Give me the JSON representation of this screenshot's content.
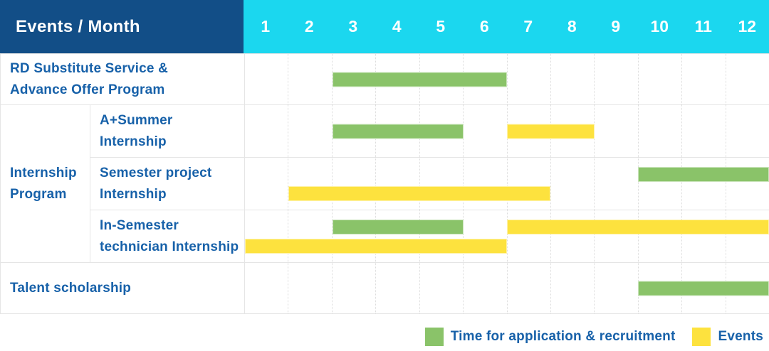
{
  "header": {
    "corner_label": "Events / Month",
    "months": [
      "1",
      "2",
      "3",
      "4",
      "5",
      "6",
      "7",
      "8",
      "9",
      "10",
      "11",
      "12"
    ]
  },
  "rows": {
    "row1_label": "RD Substitute Service &\nAdvance Offer Program",
    "group_label": "Internship\nProgram",
    "row2_label": "A+Summer\nInternship",
    "row3_label": "Semester project\nInternship",
    "row4_label": "In-Semester\ntechnician Internship",
    "row5_label": "Talent scholarship"
  },
  "legend": {
    "recruitment_label": "Time for application & recruitment",
    "events_label": "Events"
  },
  "colors": {
    "header_bg": "#124E87",
    "months_bg": "#1BD7EF",
    "recruitment": "#8AC369",
    "events": "#FDE23E",
    "label_text": "#1761A9"
  },
  "chart_data": {
    "type": "bar",
    "subtype": "gantt",
    "title": "Events / Month",
    "x_axis": {
      "label": "Month",
      "ticks": [
        1,
        2,
        3,
        4,
        5,
        6,
        7,
        8,
        9,
        10,
        11,
        12
      ],
      "range": [
        1,
        12
      ]
    },
    "grid": true,
    "legend_position": "bottom-right",
    "legend": [
      {
        "series": "recruitment",
        "label": "Time for application & recruitment",
        "color": "#8AC369"
      },
      {
        "series": "events",
        "label": "Events",
        "color": "#FDE23E"
      }
    ],
    "tasks": [
      {
        "group": "",
        "name": "RD Substitute Service & Advance Offer Program",
        "bars": [
          {
            "series": "recruitment",
            "start_month": 3,
            "end_month": 6,
            "track": "single"
          }
        ]
      },
      {
        "group": "Internship Program",
        "name": "A+Summer Internship",
        "bars": [
          {
            "series": "recruitment",
            "start_month": 3,
            "end_month": 5,
            "track": "single"
          },
          {
            "series": "events",
            "start_month": 7,
            "end_month": 8,
            "track": "single"
          }
        ]
      },
      {
        "group": "Internship Program",
        "name": "Semester project Internship",
        "bars": [
          {
            "series": "recruitment",
            "start_month": 10,
            "end_month": 12,
            "track": "top"
          },
          {
            "series": "events",
            "start_month": 2,
            "end_month": 7,
            "track": "bottom"
          }
        ]
      },
      {
        "group": "Internship Program",
        "name": "In-Semester technician Internship",
        "bars": [
          {
            "series": "recruitment",
            "start_month": 3,
            "end_month": 5,
            "track": "top"
          },
          {
            "series": "events",
            "start_month": 7,
            "end_month": 12,
            "track": "top"
          },
          {
            "series": "events",
            "start_month": 1,
            "end_month": 6,
            "track": "bottom"
          }
        ]
      },
      {
        "group": "",
        "name": "Talent scholarship",
        "bars": [
          {
            "series": "recruitment",
            "start_month": 10,
            "end_month": 12,
            "track": "single"
          }
        ]
      }
    ]
  }
}
